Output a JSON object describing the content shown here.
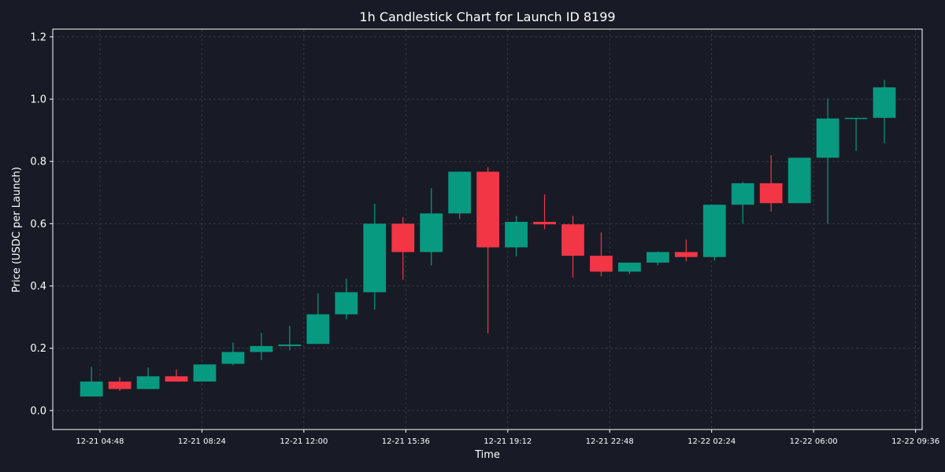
{
  "chart_data": {
    "type": "candlestick",
    "title": "1h Candlestick Chart for Launch ID 8199",
    "xlabel": "Time",
    "ylabel": "Price (USDC per Launch)",
    "ylim": [
      -0.061,
      1.225
    ],
    "yticks": [
      0.0,
      0.2,
      0.4,
      0.6,
      0.8,
      1.0,
      1.2
    ],
    "ytick_labels": [
      "0.0",
      "0.2",
      "0.4",
      "0.6",
      "0.8",
      "1.0",
      "1.2"
    ],
    "xlim": [
      "12-21 03:08",
      "12-22 09:50"
    ],
    "xticks": [
      "12-21 04:48",
      "12-21 08:24",
      "12-21 12:00",
      "12-21 15:36",
      "12-21 19:12",
      "12-21 22:48",
      "12-22 02:24",
      "12-22 06:00",
      "12-22 09:36"
    ],
    "grid": true,
    "colors": {
      "up": "#089981",
      "down": "#f23645",
      "background": "#181b25",
      "text": "#ffffff",
      "grid": "#3a3f4d"
    },
    "candles": [
      {
        "t": "12-21 04:30",
        "open": 0.045,
        "high": 0.14,
        "low": 0.045,
        "close": 0.093
      },
      {
        "t": "12-21 05:30",
        "open": 0.093,
        "high": 0.107,
        "low": 0.063,
        "close": 0.069
      },
      {
        "t": "12-21 06:30",
        "open": 0.069,
        "high": 0.138,
        "low": 0.069,
        "close": 0.11
      },
      {
        "t": "12-21 07:30",
        "open": 0.11,
        "high": 0.132,
        "low": 0.093,
        "close": 0.093
      },
      {
        "t": "12-21 08:30",
        "open": 0.093,
        "high": 0.148,
        "low": 0.093,
        "close": 0.148
      },
      {
        "t": "12-21 09:30",
        "open": 0.15,
        "high": 0.218,
        "low": 0.146,
        "close": 0.188
      },
      {
        "t": "12-21 10:30",
        "open": 0.188,
        "high": 0.249,
        "low": 0.162,
        "close": 0.207
      },
      {
        "t": "12-21 11:30",
        "open": 0.207,
        "high": 0.272,
        "low": 0.193,
        "close": 0.212
      },
      {
        "t": "12-21 12:30",
        "open": 0.214,
        "high": 0.376,
        "low": 0.214,
        "close": 0.309
      },
      {
        "t": "12-21 13:30",
        "open": 0.309,
        "high": 0.423,
        "low": 0.293,
        "close": 0.38
      },
      {
        "t": "12-21 14:30",
        "open": 0.38,
        "high": 0.664,
        "low": 0.324,
        "close": 0.6
      },
      {
        "t": "12-21 15:30",
        "open": 0.6,
        "high": 0.621,
        "low": 0.42,
        "close": 0.509
      },
      {
        "t": "12-21 16:30",
        "open": 0.509,
        "high": 0.714,
        "low": 0.466,
        "close": 0.633
      },
      {
        "t": "12-21 17:30",
        "open": 0.633,
        "high": 0.768,
        "low": 0.615,
        "close": 0.767
      },
      {
        "t": "12-21 18:30",
        "open": 0.767,
        "high": 0.782,
        "low": 0.248,
        "close": 0.524
      },
      {
        "t": "12-21 19:30",
        "open": 0.524,
        "high": 0.625,
        "low": 0.495,
        "close": 0.606
      },
      {
        "t": "12-21 20:30",
        "open": 0.606,
        "high": 0.694,
        "low": 0.582,
        "close": 0.598
      },
      {
        "t": "12-21 21:30",
        "open": 0.598,
        "high": 0.625,
        "low": 0.427,
        "close": 0.497
      },
      {
        "t": "12-21 22:30",
        "open": 0.497,
        "high": 0.572,
        "low": 0.431,
        "close": 0.446
      },
      {
        "t": "12-21 23:30",
        "open": 0.446,
        "high": 0.475,
        "low": 0.438,
        "close": 0.475
      },
      {
        "t": "12-22 00:30",
        "open": 0.475,
        "high": 0.511,
        "low": 0.466,
        "close": 0.509
      },
      {
        "t": "12-22 01:30",
        "open": 0.509,
        "high": 0.549,
        "low": 0.479,
        "close": 0.493
      },
      {
        "t": "12-22 02:30",
        "open": 0.493,
        "high": 0.661,
        "low": 0.482,
        "close": 0.661
      },
      {
        "t": "12-22 03:30",
        "open": 0.661,
        "high": 0.734,
        "low": 0.6,
        "close": 0.73
      },
      {
        "t": "12-22 04:30",
        "open": 0.73,
        "high": 0.82,
        "low": 0.639,
        "close": 0.666
      },
      {
        "t": "12-22 05:30",
        "open": 0.666,
        "high": 0.812,
        "low": 0.666,
        "close": 0.812
      },
      {
        "t": "12-22 06:30",
        "open": 0.812,
        "high": 1.002,
        "low": 0.6,
        "close": 0.938
      },
      {
        "t": "12-22 07:30",
        "open": 0.938,
        "high": 0.94,
        "low": 0.834,
        "close": 0.94
      },
      {
        "t": "12-22 08:30",
        "open": 0.94,
        "high": 1.062,
        "low": 0.858,
        "close": 1.038
      }
    ]
  }
}
